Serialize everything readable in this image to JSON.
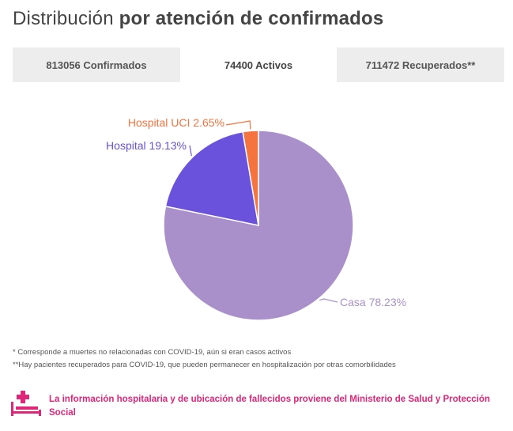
{
  "header": {
    "title_light": "Distribución",
    "title_bold": "por atención de confirmados"
  },
  "tabs": [
    {
      "label": "813056 Confirmados",
      "active": false
    },
    {
      "label": "74400 Activos",
      "active": true
    },
    {
      "label": "711472 Recuperados**",
      "active": false
    }
  ],
  "chart_data": {
    "type": "pie",
    "slices": [
      {
        "label": "Casa 78.23%",
        "name": "Casa",
        "value": 78.23,
        "color": "#a990cb",
        "label_color": "#a990cb"
      },
      {
        "label": "Hospital 19.13%",
        "name": "Hospital",
        "value": 19.13,
        "color": "#6a52dc",
        "label_color": "#6a52dc"
      },
      {
        "label": "Hospital UCI 2.65%",
        "name": "Hospital UCI",
        "value": 2.65,
        "color": "#f4733f",
        "label_color": "#f4733f"
      }
    ]
  },
  "footnotes": [
    "* Corresponde a muertes no relacionadas con COVID-19, aún si eran casos activos",
    "**Hay pacientes recuperados para COVID-19, que pueden permanecer en hospitalización por otras comorbilidades"
  ],
  "source": {
    "text": "La información hospitalaria y de ubicación de fallecidos proviene del Ministerio de Salud y Protección Social",
    "icon": "hospital-bed-icon",
    "color": "#e0267a"
  }
}
